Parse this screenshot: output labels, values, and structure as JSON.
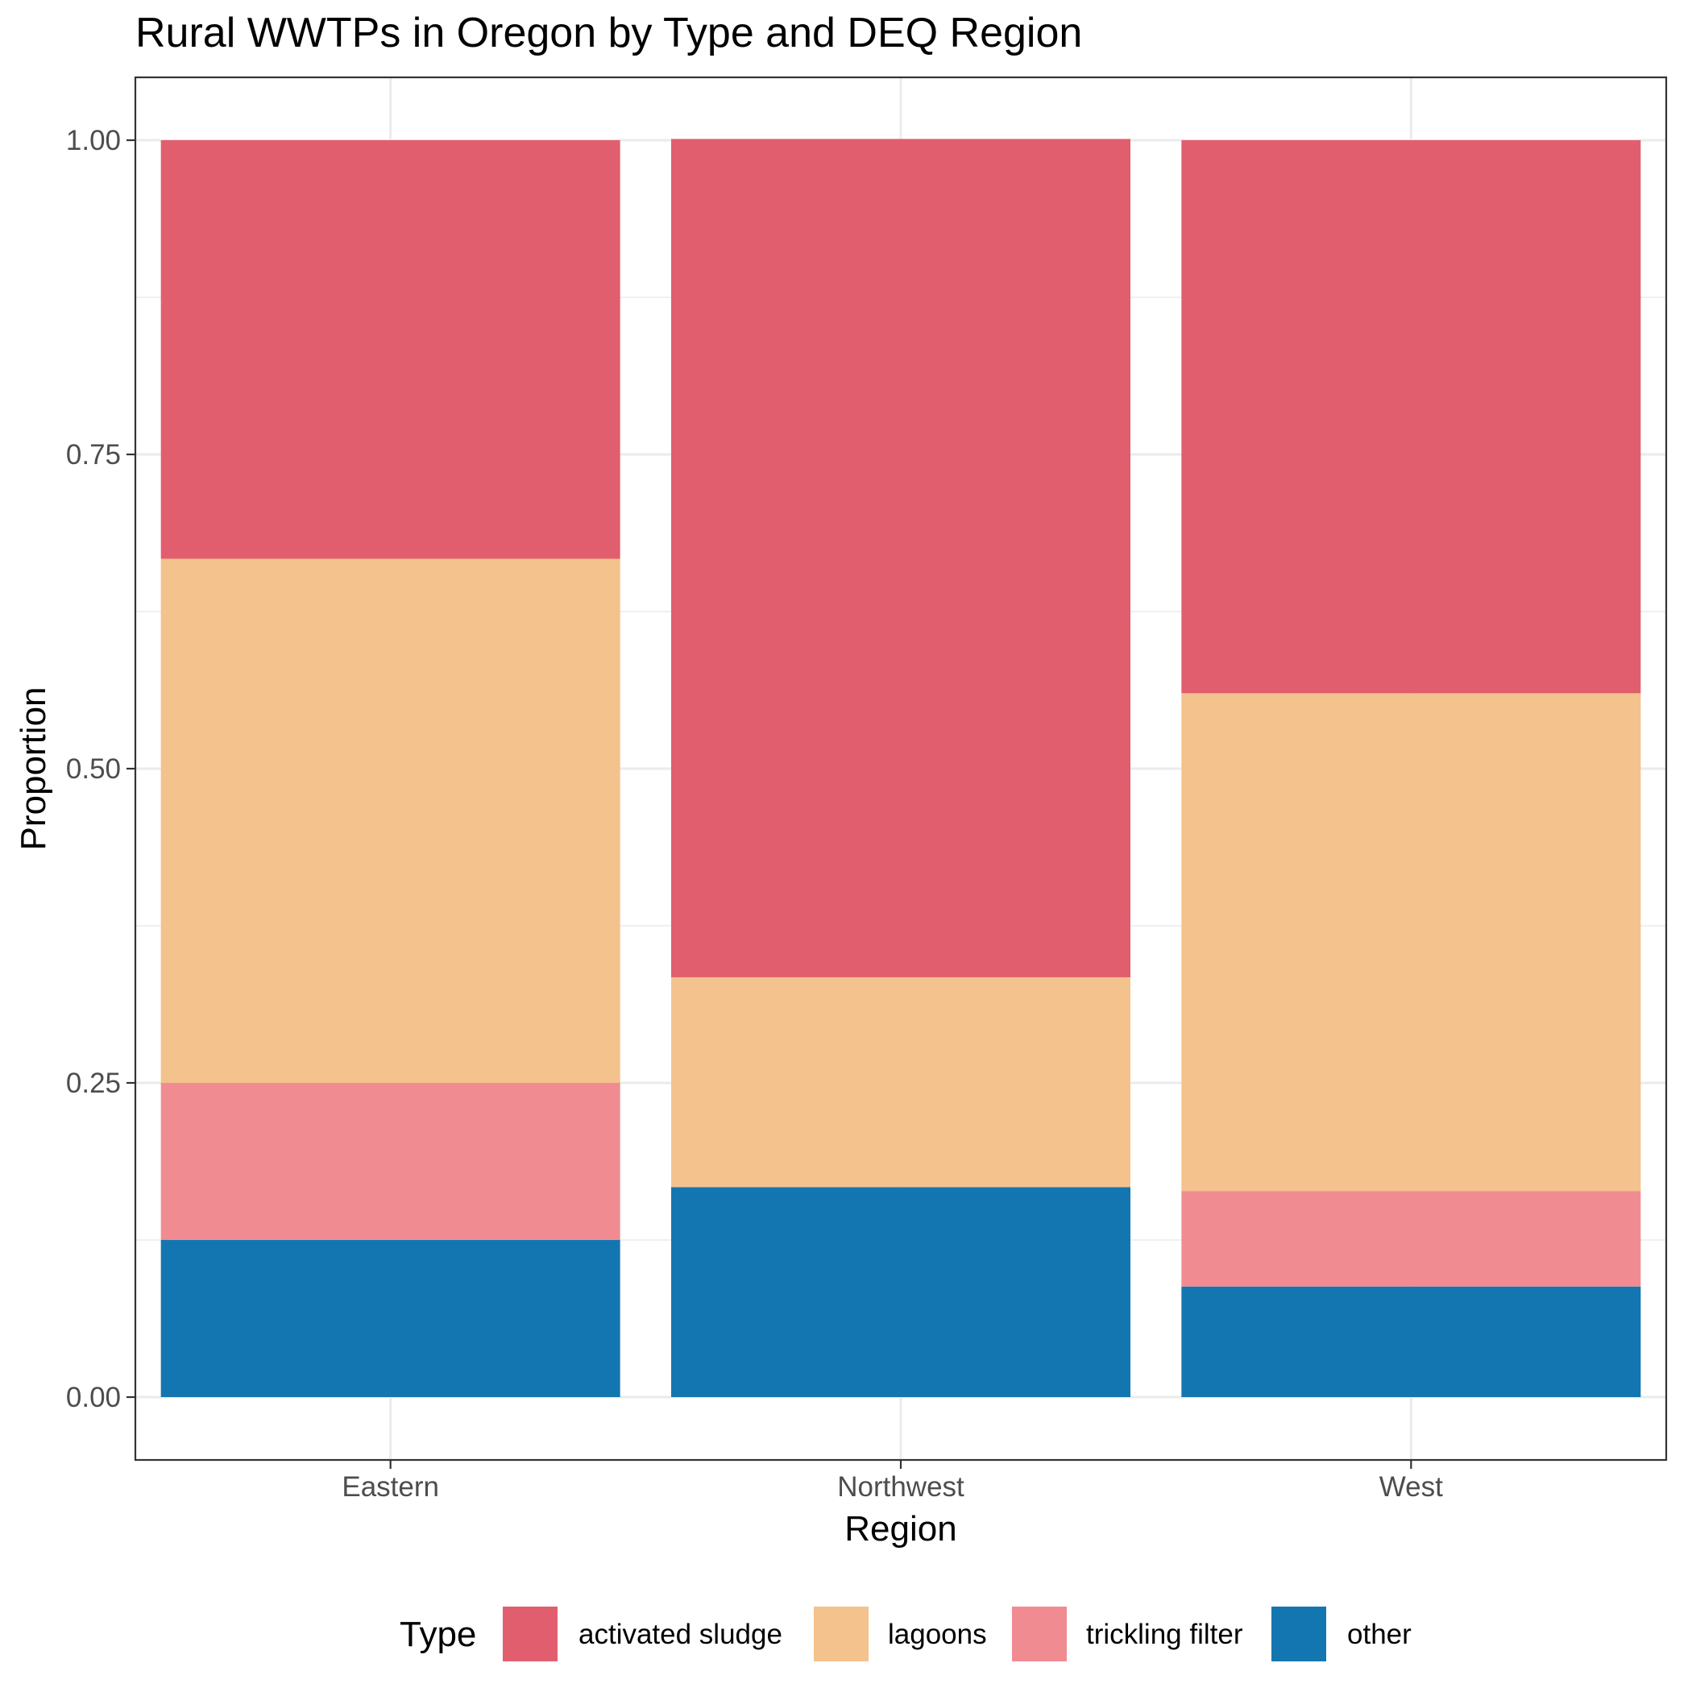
{
  "chart_data": {
    "type": "bar",
    "stacked": true,
    "title": "Rural WWTPs in Oregon by Type and DEQ Region",
    "xlabel": "Region",
    "ylabel": "Proportion",
    "ylim": [
      -0.05,
      1.05
    ],
    "yticks": [
      0,
      0.25,
      0.5,
      0.75,
      1
    ],
    "ytick_labels": [
      "0.00",
      "0.25",
      "0.50",
      "0.75",
      "1.00"
    ],
    "grid": true,
    "legend_position": "bottom",
    "legend_title": "Type",
    "categories": [
      "Eastern",
      "Northwest",
      "West"
    ],
    "series": [
      {
        "name": "activated sludge",
        "color": "#E15E6E",
        "values": [
          0.333,
          0.667,
          0.44
        ]
      },
      {
        "name": "lagoons",
        "color": "#F4C28C",
        "values": [
          0.417,
          0.167,
          0.396
        ]
      },
      {
        "name": "trickling filter",
        "color": "#F18B92",
        "values": [
          0.125,
          0.0,
          0.076
        ]
      },
      {
        "name": "other",
        "color": "#1476B0",
        "values": [
          0.125,
          0.167,
          0.088
        ]
      }
    ]
  }
}
